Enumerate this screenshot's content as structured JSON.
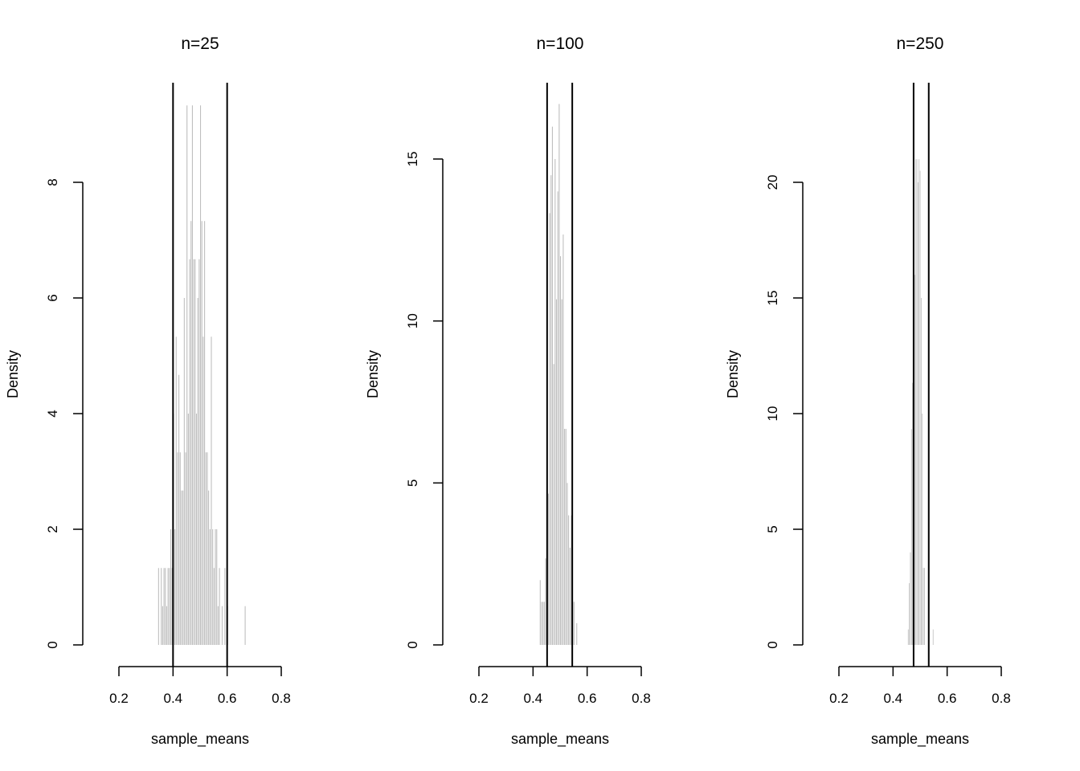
{
  "chart_data": [
    {
      "type": "bar",
      "title": "n=25",
      "xlabel": "sample_means",
      "ylabel": "Density",
      "xlim": [
        0.2,
        0.8
      ],
      "ylim": [
        0,
        8
      ],
      "xticks": [
        "0.2",
        "0.4",
        "0.6",
        "0.8"
      ],
      "yticks": [
        "0",
        "2",
        "4",
        "6",
        "8"
      ],
      "bin_start": 0.345,
      "bin_width": 0.005,
      "values": [
        1.33,
        0,
        1.33,
        0.67,
        1.33,
        1.33,
        0.67,
        1.33,
        1.33,
        2,
        1.33,
        4,
        2,
        5.33,
        3.33,
        4.67,
        3.33,
        2.67,
        2.67,
        6,
        3.33,
        9.33,
        4,
        6.67,
        7.33,
        9.33,
        6.67,
        6.67,
        4,
        6,
        6.67,
        9.33,
        7.33,
        5.33,
        7.33,
        3.33,
        3.33,
        2.67,
        2,
        5.33,
        2,
        1.33,
        2,
        2,
        0.67,
        1.33,
        0,
        0.67,
        0,
        1.33,
        0,
        0.67,
        0,
        0,
        0,
        0,
        0,
        0,
        0,
        0,
        0,
        0,
        0,
        0,
        0.67
      ],
      "vlines": [
        0.4,
        0.6
      ],
      "bar_color": "#bebebe"
    },
    {
      "type": "bar",
      "title": "n=100",
      "xlabel": "sample_means",
      "ylabel": "Density",
      "xlim": [
        0.2,
        0.8
      ],
      "ylim": [
        0,
        15
      ],
      "xticks": [
        "0.2",
        "0.4",
        "0.6",
        "0.8"
      ],
      "yticks": [
        "0",
        "5",
        "10",
        "15"
      ],
      "bin_start": 0.425,
      "bin_width": 0.005,
      "values": [
        2,
        1.33,
        1.33,
        1.33,
        2.67,
        2.67,
        4.67,
        13.33,
        14.5,
        16,
        8.67,
        15,
        10.67,
        14,
        16.7,
        12,
        10.67,
        12.67,
        6.67,
        6.67,
        5,
        4,
        3,
        4,
        1.33,
        1.33,
        0,
        0.67,
        0,
        0
      ],
      "vlines": [
        0.452,
        0.545
      ],
      "bar_color": "#bebebe"
    },
    {
      "type": "bar",
      "title": "n=250",
      "xlabel": "sample_means",
      "ylabel": "Density",
      "xlim": [
        0.2,
        0.8
      ],
      "ylim": [
        0,
        20
      ],
      "xticks": [
        "0.2",
        "0.4",
        "0.6",
        "0.8"
      ],
      "yticks": [
        "0",
        "5",
        "10",
        "15",
        "20"
      ],
      "bin_start": 0.455,
      "bin_width": 0.004,
      "values": [
        0.67,
        2.67,
        4,
        9.33,
        11.33,
        19.33,
        16,
        21,
        21,
        20,
        21,
        20.5,
        15,
        10,
        3.33,
        3.33,
        0,
        0,
        0,
        0,
        0,
        0,
        0,
        0.67
      ],
      "vlines": [
        0.476,
        0.532
      ],
      "bar_color": "#bebebe"
    }
  ]
}
